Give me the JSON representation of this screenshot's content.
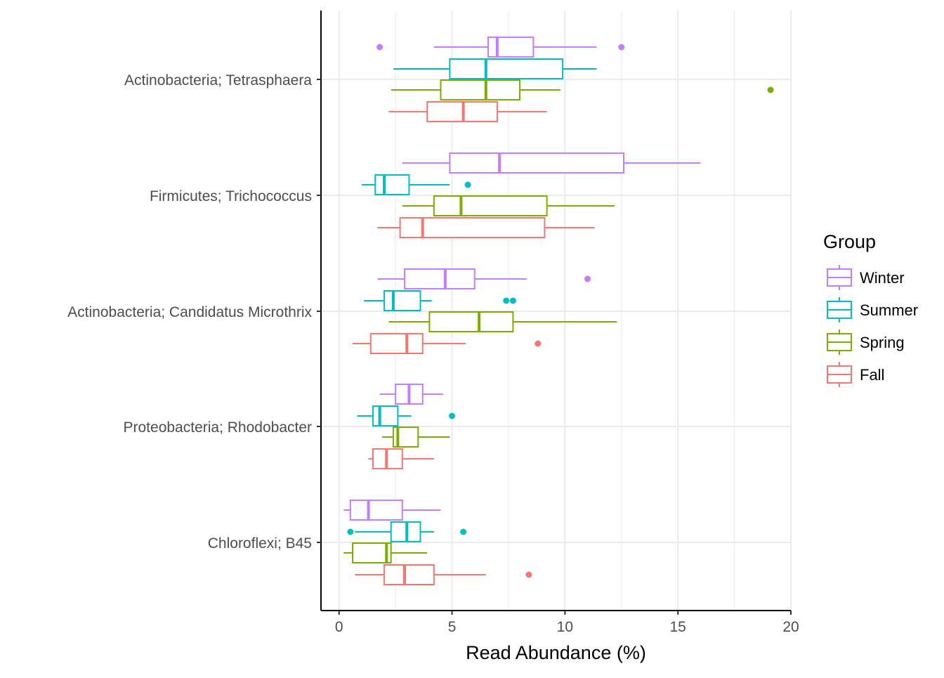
{
  "chart_data": {
    "type": "boxplot",
    "orientation": "horizontal",
    "xlabel": "Read Abundance (%)",
    "ylabel": "",
    "xlim": [
      -0.8,
      20
    ],
    "xticks": [
      0,
      5,
      10,
      15,
      20
    ],
    "grid": true,
    "legend_title": "Group",
    "legend_position": "right",
    "groups": [
      {
        "name": "Winter",
        "color": "#C77CFF"
      },
      {
        "name": "Summer",
        "color": "#00BFC4"
      },
      {
        "name": "Spring",
        "color": "#7CAE00"
      },
      {
        "name": "Fall",
        "color": "#F8766D"
      }
    ],
    "categories": [
      "Actinobacteria; Tetrasphaera",
      "Firmicutes; Trichococcus",
      "Actinobacteria; Candidatus Microthrix",
      "Proteobacteria; Rhodobacter",
      "Chloroflexi; B45"
    ],
    "boxes": [
      {
        "category": "Actinobacteria; Tetrasphaera",
        "group": "Winter",
        "min": 4.2,
        "q1": 6.6,
        "median": 7.0,
        "q3": 8.6,
        "max": 11.4,
        "outliers": [
          1.8,
          12.5
        ]
      },
      {
        "category": "Actinobacteria; Tetrasphaera",
        "group": "Summer",
        "min": 2.4,
        "q1": 4.9,
        "median": 6.5,
        "q3": 9.9,
        "max": 11.4,
        "outliers": []
      },
      {
        "category": "Actinobacteria; Tetrasphaera",
        "group": "Spring",
        "min": 2.3,
        "q1": 4.5,
        "median": 6.5,
        "q3": 8.0,
        "max": 9.8,
        "outliers": [
          19.1
        ]
      },
      {
        "category": "Actinobacteria; Tetrasphaera",
        "group": "Fall",
        "min": 2.2,
        "q1": 3.9,
        "median": 5.5,
        "q3": 7.0,
        "max": 9.2,
        "outliers": []
      },
      {
        "category": "Firmicutes; Trichococcus",
        "group": "Winter",
        "min": 2.8,
        "q1": 4.9,
        "median": 7.1,
        "q3": 12.6,
        "max": 16.0,
        "outliers": []
      },
      {
        "category": "Firmicutes; Trichococcus",
        "group": "Summer",
        "min": 1.0,
        "q1": 1.6,
        "median": 2.0,
        "q3": 3.1,
        "max": 4.9,
        "outliers": [
          5.7
        ]
      },
      {
        "category": "Firmicutes; Trichococcus",
        "group": "Spring",
        "min": 2.8,
        "q1": 4.2,
        "median": 5.4,
        "q3": 9.2,
        "max": 12.2,
        "outliers": []
      },
      {
        "category": "Firmicutes; Trichococcus",
        "group": "Fall",
        "min": 1.7,
        "q1": 2.7,
        "median": 3.7,
        "q3": 9.1,
        "max": 11.3,
        "outliers": []
      },
      {
        "category": "Actinobacteria; Candidatus Microthrix",
        "group": "Winter",
        "min": 1.7,
        "q1": 2.9,
        "median": 4.7,
        "q3": 6.0,
        "max": 8.3,
        "outliers": [
          11.0
        ]
      },
      {
        "category": "Actinobacteria; Candidatus Microthrix",
        "group": "Summer",
        "min": 1.1,
        "q1": 2.0,
        "median": 2.4,
        "q3": 3.6,
        "max": 4.1,
        "outliers": [
          7.4,
          7.7
        ]
      },
      {
        "category": "Actinobacteria; Candidatus Microthrix",
        "group": "Spring",
        "min": 2.2,
        "q1": 4.0,
        "median": 6.2,
        "q3": 7.7,
        "max": 12.3,
        "outliers": []
      },
      {
        "category": "Actinobacteria; Candidatus Microthrix",
        "group": "Fall",
        "min": 0.6,
        "q1": 1.4,
        "median": 3.0,
        "q3": 3.7,
        "max": 5.6,
        "outliers": [
          8.8
        ]
      },
      {
        "category": "Proteobacteria; Rhodobacter",
        "group": "Winter",
        "min": 1.8,
        "q1": 2.5,
        "median": 3.1,
        "q3": 3.7,
        "max": 4.6,
        "outliers": []
      },
      {
        "category": "Proteobacteria; Rhodobacter",
        "group": "Summer",
        "min": 0.8,
        "q1": 1.5,
        "median": 1.8,
        "q3": 2.6,
        "max": 3.2,
        "outliers": [
          5.0
        ]
      },
      {
        "category": "Proteobacteria; Rhodobacter",
        "group": "Spring",
        "min": 1.9,
        "q1": 2.4,
        "median": 2.6,
        "q3": 3.5,
        "max": 4.9,
        "outliers": []
      },
      {
        "category": "Proteobacteria; Rhodobacter",
        "group": "Fall",
        "min": 1.3,
        "q1": 1.5,
        "median": 2.1,
        "q3": 2.8,
        "max": 4.2,
        "outliers": []
      },
      {
        "category": "Chloroflexi; B45",
        "group": "Winter",
        "min": 0.2,
        "q1": 0.5,
        "median": 1.3,
        "q3": 2.8,
        "max": 4.5,
        "outliers": []
      },
      {
        "category": "Chloroflexi; B45",
        "group": "Summer",
        "min": 0.7,
        "q1": 2.3,
        "median": 3.0,
        "q3": 3.6,
        "max": 4.2,
        "outliers": [
          0.5,
          5.5
        ]
      },
      {
        "category": "Chloroflexi; B45",
        "group": "Spring",
        "min": 0.2,
        "q1": 0.6,
        "median": 2.1,
        "q3": 2.3,
        "max": 3.9,
        "outliers": []
      },
      {
        "category": "Chloroflexi; B45",
        "group": "Fall",
        "min": 0.7,
        "q1": 2.0,
        "median": 2.9,
        "q3": 4.2,
        "max": 6.5,
        "outliers": [
          8.4
        ]
      }
    ]
  }
}
